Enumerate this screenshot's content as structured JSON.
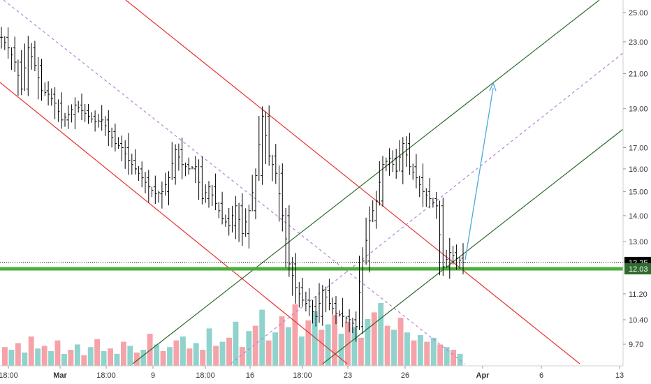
{
  "chart_data": {
    "type": "candlestick",
    "y_scale": "log",
    "ylim": [
      9.35,
      26.2
    ],
    "colors": {
      "bars": "#000000",
      "channel_red": "#e8322f",
      "channel_green": "#2e6b2e",
      "median_purple": "#b784d6",
      "support": "#4caf3d",
      "arrow": "#4aa9e0",
      "price_tag": "#000000",
      "support_tag": "#2e6b2e",
      "volume": [
        "#f5a3a8",
        "#8fd3cc"
      ]
    },
    "y_ticks": [
      "25.00",
      "23.00",
      "21.00",
      "19.00",
      "17.00",
      "16.00",
      "15.00",
      "14.00",
      "13.00",
      "11.20",
      "10.40",
      "9.70"
    ],
    "y_tick_values": [
      25.0,
      23.0,
      21.0,
      19.0,
      17.0,
      16.0,
      15.0,
      14.0,
      13.0,
      11.2,
      10.4,
      9.7
    ],
    "x_ticks": [
      {
        "label": "18:00",
        "bold": false
      },
      {
        "label": "Mar",
        "bold": true
      },
      {
        "label": "18:00",
        "bold": false
      },
      {
        "label": "9",
        "bold": false
      },
      {
        "label": "18:00",
        "bold": false
      },
      {
        "label": "16",
        "bold": false
      },
      {
        "label": "18:00",
        "bold": false
      },
      {
        "label": "23",
        "bold": false
      },
      {
        "label": "26",
        "bold": false
      },
      {
        "label": "Apr",
        "bold": true
      },
      {
        "label": "6",
        "bold": false
      },
      {
        "label": "13",
        "bold": false
      }
    ],
    "last_price": {
      "label": "12.25",
      "value": 12.25
    },
    "support_level": {
      "label": "12.03",
      "value": 12.03
    },
    "price_series": [
      23.3,
      22.6,
      21.7,
      20.1,
      22.6,
      21.5,
      20.0,
      19.8,
      19.3,
      18.4,
      18.7,
      19.2,
      18.9,
      18.6,
      18.3,
      18.4,
      17.8,
      17.2,
      17.0,
      16.4,
      16.0,
      15.6,
      15.2,
      14.9,
      15.0,
      15.6,
      16.9,
      16.2,
      16.0,
      16.1,
      14.7,
      15.2,
      14.5,
      13.9,
      13.6,
      14.4,
      13.3,
      14.2,
      15.7,
      18.6,
      16.6,
      15.8,
      14.0,
      12.2,
      11.4,
      11.0,
      10.8,
      10.5,
      11.3,
      10.9,
      10.6,
      10.5,
      10.4,
      10.2,
      12.3,
      13.8,
      14.6,
      16.2,
      16.5,
      15.9,
      17.2,
      16.1,
      15.6,
      15.0,
      14.7,
      14.4,
      12.1,
      12.6,
      12.4,
      12.25
    ],
    "volume": [
      14,
      12,
      17,
      10,
      22,
      13,
      15,
      11,
      19,
      9,
      12,
      16,
      8,
      14,
      20,
      11,
      13,
      9,
      18,
      15,
      10,
      12,
      24,
      16,
      11,
      14,
      19,
      22,
      13,
      17,
      12,
      28,
      15,
      18,
      21,
      33,
      14,
      26,
      30,
      42,
      19,
      25,
      37,
      29,
      46,
      22,
      34,
      41,
      27,
      31,
      38,
      24,
      33,
      29,
      21,
      35,
      40,
      47,
      30,
      27,
      36,
      25,
      19,
      23,
      18,
      21,
      16,
      14,
      12,
      9
    ]
  }
}
